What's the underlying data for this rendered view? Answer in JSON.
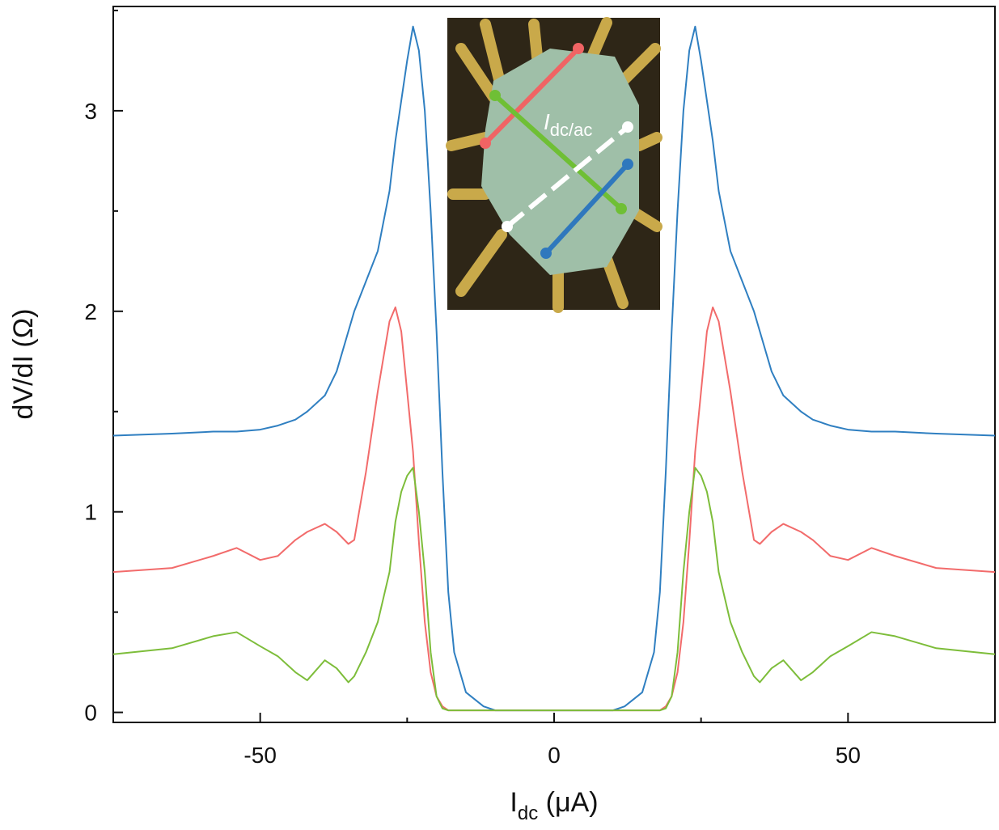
{
  "chart_data": {
    "type": "line",
    "y_label": "dV/dI (Ω)",
    "x_label": {
      "main": "I",
      "sub": "dc",
      "rest": " (μA)"
    },
    "inset_label": {
      "main": "I",
      "sub": "dc/ac"
    },
    "x": [
      -75,
      -65,
      -58,
      -54,
      -50,
      -47,
      -44,
      -42,
      -39,
      -37,
      -35,
      -34,
      -32,
      -30,
      -28,
      -27,
      -26,
      -25,
      -24,
      -23,
      -22,
      -21,
      -20,
      -19,
      -18,
      -17,
      -15,
      -12,
      -10,
      -5,
      0,
      5,
      10,
      12,
      15,
      17,
      18,
      19,
      20,
      21,
      22,
      23,
      24,
      25,
      26,
      27,
      28,
      30,
      32,
      34,
      35,
      37,
      39,
      42,
      44,
      47,
      50,
      54,
      58,
      65,
      75
    ],
    "series": [
      {
        "color": "#2f7fc1",
        "values": [
          1.38,
          1.39,
          1.4,
          1.4,
          1.41,
          1.43,
          1.46,
          1.5,
          1.58,
          1.7,
          1.9,
          2.0,
          2.15,
          2.3,
          2.6,
          2.85,
          3.05,
          3.25,
          3.42,
          3.3,
          3.0,
          2.5,
          1.9,
          1.2,
          0.6,
          0.3,
          0.1,
          0.03,
          0.01,
          0.01,
          0.01,
          0.01,
          0.01,
          0.03,
          0.1,
          0.3,
          0.6,
          1.2,
          1.9,
          2.5,
          3.0,
          3.3,
          3.42,
          3.25,
          3.05,
          2.85,
          2.6,
          2.3,
          2.15,
          2.0,
          1.9,
          1.7,
          1.58,
          1.5,
          1.46,
          1.43,
          1.41,
          1.4,
          1.4,
          1.39,
          1.38
        ]
      },
      {
        "color": "#f26b6b",
        "values": [
          0.7,
          0.72,
          0.78,
          0.82,
          0.76,
          0.78,
          0.86,
          0.9,
          0.94,
          0.9,
          0.84,
          0.86,
          1.2,
          1.6,
          1.95,
          2.02,
          1.9,
          1.6,
          1.3,
          0.85,
          0.45,
          0.2,
          0.08,
          0.03,
          0.01,
          0.01,
          0.01,
          0.01,
          0.01,
          0.01,
          0.01,
          0.01,
          0.01,
          0.01,
          0.01,
          0.01,
          0.01,
          0.03,
          0.08,
          0.2,
          0.45,
          0.85,
          1.3,
          1.6,
          1.9,
          2.02,
          1.95,
          1.6,
          1.2,
          0.86,
          0.84,
          0.9,
          0.94,
          0.9,
          0.86,
          0.78,
          0.76,
          0.82,
          0.78,
          0.72,
          0.7
        ]
      },
      {
        "color": "#7dbd3a",
        "values": [
          0.29,
          0.32,
          0.38,
          0.4,
          0.33,
          0.28,
          0.2,
          0.16,
          0.26,
          0.22,
          0.15,
          0.18,
          0.3,
          0.45,
          0.7,
          0.95,
          1.1,
          1.18,
          1.22,
          1.0,
          0.7,
          0.3,
          0.08,
          0.02,
          0.01,
          0.01,
          0.01,
          0.01,
          0.01,
          0.01,
          0.01,
          0.01,
          0.01,
          0.01,
          0.01,
          0.01,
          0.01,
          0.02,
          0.08,
          0.3,
          0.7,
          1.0,
          1.22,
          1.18,
          1.1,
          0.95,
          0.7,
          0.45,
          0.3,
          0.18,
          0.15,
          0.22,
          0.26,
          0.16,
          0.2,
          0.28,
          0.33,
          0.4,
          0.38,
          0.32,
          0.29
        ]
      }
    ],
    "xlim": [
      -75,
      75
    ],
    "ylim": [
      -0.05,
      3.52
    ],
    "xticks": [
      -50,
      0,
      50
    ],
    "yticks": [
      0,
      1,
      2,
      3
    ],
    "xminor": [
      -75,
      -25,
      25,
      75
    ],
    "yminor": [
      0.5,
      1.5,
      2.5,
      3.5
    ]
  }
}
